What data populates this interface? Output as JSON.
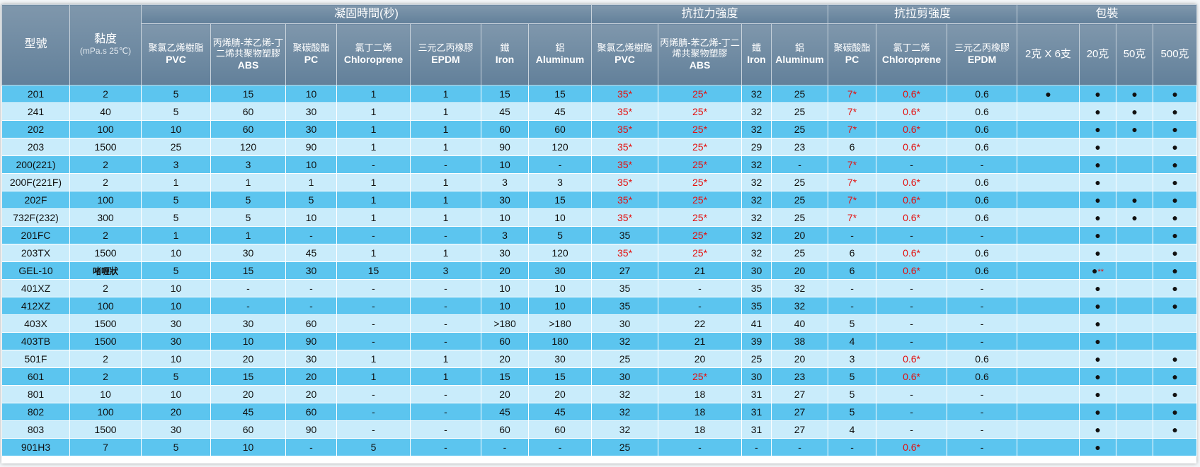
{
  "headers": {
    "model": "型號",
    "viscosity": "黏度",
    "viscosity_unit": "(mPa.s 25℃)",
    "groups": {
      "cure": "凝固時間(秒)",
      "tensile": "抗拉力強度",
      "shear": "抗拉剪強度",
      "pack": "包裝"
    },
    "cure_cols": [
      {
        "zh": "聚氯乙烯樹脂",
        "en": "PVC"
      },
      {
        "zh": "丙烯腈-苯乙烯-丁二烯共聚物塑膠",
        "en": "ABS"
      },
      {
        "zh": "聚碳酸酯",
        "en": "PC"
      },
      {
        "zh": "氯丁二烯",
        "en": "Chloroprene"
      },
      {
        "zh": "三元乙丙橡膠",
        "en": "EPDM"
      },
      {
        "zh": "鐵",
        "en": "Iron"
      },
      {
        "zh": "鋁",
        "en": "Aluminum"
      }
    ],
    "tensile_cols": [
      {
        "zh": "聚氯乙烯樹脂",
        "en": "PVC"
      },
      {
        "zh": "丙烯腈-苯乙烯-丁二烯共聚物塑膠",
        "en": "ABS"
      },
      {
        "zh": "鐵",
        "en": "Iron"
      },
      {
        "zh": "鋁",
        "en": "Aluminum"
      }
    ],
    "shear_cols": [
      {
        "zh": "聚碳酸酯",
        "en": "PC"
      },
      {
        "zh": "氯丁二烯",
        "en": "Chloroprene"
      },
      {
        "zh": "三元乙丙橡膠",
        "en": "EPDM"
      }
    ],
    "pack_cols": [
      "2克 X 6支",
      "20克",
      "50克",
      "500克"
    ]
  },
  "rows": [
    [
      "201",
      "2",
      "5",
      "15",
      "10",
      "1",
      "1",
      "15",
      "15",
      "35*",
      "25*",
      "32",
      "25",
      "7*",
      "0.6*",
      "0.6",
      "●",
      "●",
      "●",
      "●"
    ],
    [
      "241",
      "40",
      "5",
      "60",
      "30",
      "1",
      "1",
      "45",
      "45",
      "35*",
      "25*",
      "32",
      "25",
      "7*",
      "0.6*",
      "0.6",
      "",
      "●",
      "●",
      "●"
    ],
    [
      "202",
      "100",
      "10",
      "60",
      "30",
      "1",
      "1",
      "60",
      "60",
      "35*",
      "25*",
      "32",
      "25",
      "7*",
      "0.6*",
      "0.6",
      "",
      "●",
      "●",
      "●"
    ],
    [
      "203",
      "1500",
      "25",
      "120",
      "90",
      "1",
      "1",
      "90",
      "120",
      "35*",
      "25*",
      "29",
      "23",
      "6",
      "0.6*",
      "0.6",
      "",
      "●",
      "",
      "●"
    ],
    [
      "200(221)",
      "2",
      "3",
      "3",
      "10",
      "-",
      "-",
      "10",
      "-",
      "35*",
      "25*",
      "32",
      "-",
      "7*",
      "-",
      "-",
      "",
      "●",
      "",
      "●"
    ],
    [
      "200F(221F)",
      "2",
      "1",
      "1",
      "1",
      "1",
      "1",
      "3",
      "3",
      "35*",
      "25*",
      "32",
      "25",
      "7*",
      "0.6*",
      "0.6",
      "",
      "●",
      "",
      "●"
    ],
    [
      "202F",
      "100",
      "5",
      "5",
      "5",
      "1",
      "1",
      "30",
      "15",
      "35*",
      "25*",
      "32",
      "25",
      "7*",
      "0.6*",
      "0.6",
      "",
      "●",
      "●",
      "●"
    ],
    [
      "732F(232)",
      "300",
      "5",
      "5",
      "10",
      "1",
      "1",
      "10",
      "10",
      "35*",
      "25*",
      "32",
      "25",
      "7*",
      "0.6*",
      "0.6",
      "",
      "●",
      "●",
      "●"
    ],
    [
      "201FC",
      "2",
      "1",
      "1",
      "-",
      "-",
      "-",
      "3",
      "5",
      "35",
      "25*",
      "32",
      "20",
      "-",
      "-",
      "-",
      "",
      "●",
      "",
      "●"
    ],
    [
      "203TX",
      "1500",
      "10",
      "30",
      "45",
      "1",
      "1",
      "30",
      "120",
      "35*",
      "25*",
      "32",
      "25",
      "6",
      "0.6*",
      "0.6",
      "",
      "●",
      "",
      "●"
    ],
    [
      "GEL-10",
      "啫喱狀",
      "5",
      "15",
      "30",
      "15",
      "3",
      "20",
      "30",
      "27",
      "21",
      "30",
      "20",
      "6",
      "0.6*",
      "0.6",
      "",
      "●**",
      "",
      "●"
    ],
    [
      "401XZ",
      "2",
      "10",
      "-",
      "-",
      "-",
      "-",
      "10",
      "10",
      "35",
      "-",
      "35",
      "32",
      "-",
      "-",
      "-",
      "",
      "●",
      "",
      "●"
    ],
    [
      "412XZ",
      "100",
      "10",
      "-",
      "-",
      "-",
      "-",
      "10",
      "10",
      "35",
      "-",
      "35",
      "32",
      "-",
      "-",
      "-",
      "",
      "●",
      "",
      "●"
    ],
    [
      "403X",
      "1500",
      "30",
      "30",
      "60",
      "-",
      "-",
      ">180",
      ">180",
      "30",
      "22",
      "41",
      "40",
      "5",
      "-",
      "-",
      "",
      "●",
      "",
      ""
    ],
    [
      "403TB",
      "1500",
      "30",
      "10",
      "90",
      "-",
      "-",
      "60",
      "180",
      "32",
      "21",
      "39",
      "38",
      "4",
      "-",
      "-",
      "",
      "●",
      "",
      ""
    ],
    [
      "501F",
      "2",
      "10",
      "20",
      "30",
      "1",
      "1",
      "20",
      "30",
      "25",
      "20",
      "25",
      "20",
      "3",
      "0.6*",
      "0.6",
      "",
      "●",
      "",
      "●"
    ],
    [
      "601",
      "2",
      "5",
      "15",
      "20",
      "1",
      "1",
      "15",
      "15",
      "30",
      "25*",
      "30",
      "23",
      "5",
      "0.6*",
      "0.6",
      "",
      "●",
      "",
      "●"
    ],
    [
      "801",
      "10",
      "10",
      "20",
      "20",
      "-",
      "-",
      "20",
      "20",
      "32",
      "18",
      "31",
      "27",
      "5",
      "-",
      "-",
      "",
      "●",
      "",
      "●"
    ],
    [
      "802",
      "100",
      "20",
      "45",
      "60",
      "-",
      "-",
      "45",
      "45",
      "32",
      "18",
      "31",
      "27",
      "5",
      "-",
      "-",
      "",
      "●",
      "",
      "●"
    ],
    [
      "803",
      "1500",
      "30",
      "60",
      "90",
      "-",
      "-",
      "60",
      "60",
      "32",
      "18",
      "31",
      "27",
      "4",
      "-",
      "-",
      "",
      "●",
      "",
      "●"
    ],
    [
      "901H3",
      "7",
      "5",
      "10",
      "-",
      "5",
      "-",
      "-",
      "-",
      "25",
      "-",
      "-",
      "-",
      "-",
      "0.6*",
      "-",
      "",
      "●",
      "",
      ""
    ]
  ],
  "colors": {
    "header": "#6f8aa2",
    "row_dark": "#5cc5ef",
    "row_light": "#c9ecfb",
    "highlight": "#e4100f"
  }
}
